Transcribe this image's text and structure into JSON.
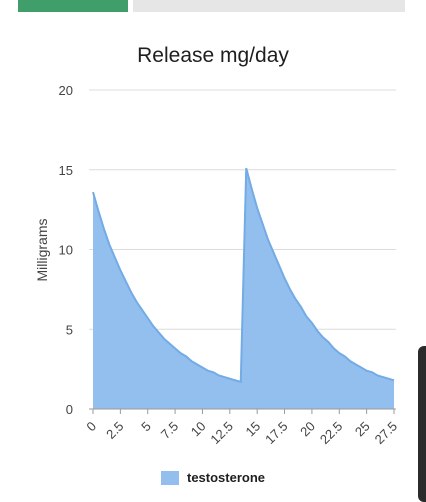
{
  "colors": {
    "tab_active": "#3f9e6a",
    "tab_inactive": "#e6e6e6",
    "series_fill": "#92bfee",
    "series_line": "#73abe6",
    "gridline": "#dcdcdc"
  },
  "chart_data": {
    "type": "area",
    "title": "Release mg/day",
    "ylabel": "Milligrams",
    "xlabel": "",
    "xlim": [
      0,
      27.5
    ],
    "ylim": [
      0,
      20
    ],
    "yticks": [
      0,
      5,
      10,
      15,
      20
    ],
    "xtick_labels": [
      "0",
      "2.5",
      "5",
      "7.5",
      "10",
      "12.5",
      "15",
      "17.5",
      "20",
      "22.5",
      "25",
      "27.5"
    ],
    "grid": true,
    "legend_position": "bottom",
    "series": [
      {
        "name": "testosterone",
        "points": [
          [
            0,
            13.6
          ],
          [
            0.5,
            12.4
          ],
          [
            1,
            11.3
          ],
          [
            1.5,
            10.3
          ],
          [
            2,
            9.5
          ],
          [
            2.5,
            8.7
          ],
          [
            3,
            8.0
          ],
          [
            3.5,
            7.3
          ],
          [
            4,
            6.7
          ],
          [
            4.5,
            6.2
          ],
          [
            5,
            5.7
          ],
          [
            5.5,
            5.2
          ],
          [
            6,
            4.8
          ],
          [
            6.5,
            4.4
          ],
          [
            7,
            4.1
          ],
          [
            7.5,
            3.8
          ],
          [
            8,
            3.5
          ],
          [
            8.5,
            3.3
          ],
          [
            9,
            3.0
          ],
          [
            9.5,
            2.8
          ],
          [
            10,
            2.6
          ],
          [
            10.5,
            2.4
          ],
          [
            11,
            2.3
          ],
          [
            11.5,
            2.1
          ],
          [
            12,
            2.0
          ],
          [
            12.5,
            1.9
          ],
          [
            13,
            1.8
          ],
          [
            13.5,
            1.7
          ],
          [
            14,
            15.1
          ],
          [
            14.5,
            13.8
          ],
          [
            15,
            12.6
          ],
          [
            15.5,
            11.6
          ],
          [
            16,
            10.6
          ],
          [
            16.5,
            9.8
          ],
          [
            17,
            9.0
          ],
          [
            17.5,
            8.2
          ],
          [
            18,
            7.5
          ],
          [
            18.5,
            6.9
          ],
          [
            19,
            6.4
          ],
          [
            19.5,
            5.8
          ],
          [
            20,
            5.4
          ],
          [
            20.5,
            4.9
          ],
          [
            21,
            4.5
          ],
          [
            21.5,
            4.2
          ],
          [
            22,
            3.8
          ],
          [
            22.5,
            3.5
          ],
          [
            23,
            3.3
          ],
          [
            23.5,
            3.0
          ],
          [
            24,
            2.8
          ],
          [
            24.5,
            2.6
          ],
          [
            25,
            2.4
          ],
          [
            25.5,
            2.3
          ],
          [
            26,
            2.1
          ],
          [
            26.5,
            2.0
          ],
          [
            27,
            1.9
          ],
          [
            27.5,
            1.8
          ]
        ]
      }
    ]
  }
}
